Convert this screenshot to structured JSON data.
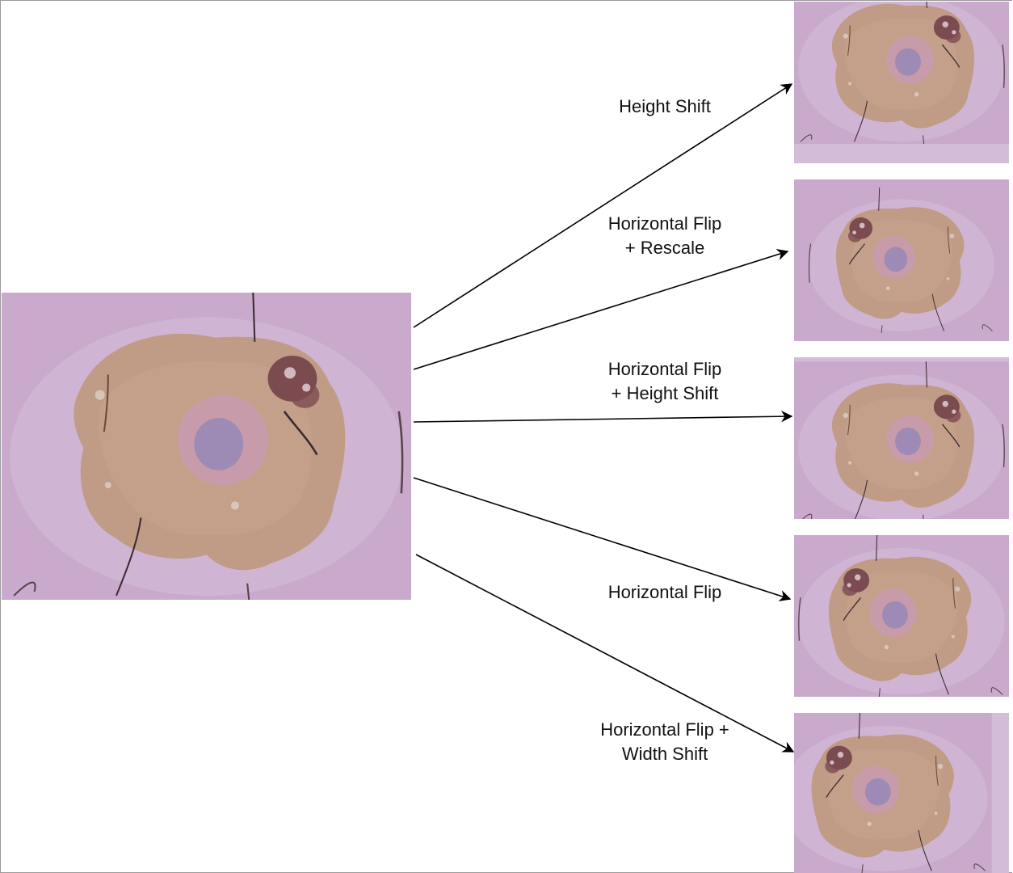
{
  "diagram": {
    "source_image": {
      "icon": "dermoscopy-lesion-image"
    },
    "augmentations": [
      {
        "label": "Height Shift",
        "icon": "dermoscopy-lesion-image"
      },
      {
        "label": "Horizontal Flip\n+ Rescale",
        "icon": "dermoscopy-lesion-image"
      },
      {
        "label": "Horizontal Flip\n+ Height Shift",
        "icon": "dermoscopy-lesion-image"
      },
      {
        "label": "Horizontal Flip",
        "icon": "dermoscopy-lesion-image"
      },
      {
        "label": "Horizontal Flip +\nWidth Shift",
        "icon": "dermoscopy-lesion-image"
      }
    ],
    "colors": {
      "skin": "#c9aacd",
      "lesion": "#b98a6c",
      "lesion_core": "#8c7bb0",
      "spot": "#6d3d45",
      "arrow": "#000000"
    }
  }
}
